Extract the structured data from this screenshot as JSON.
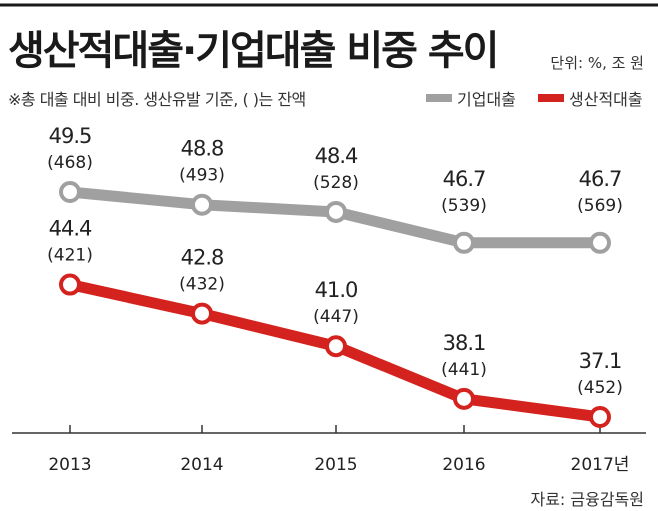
{
  "header": {
    "title": "생산적대출·기업대출 비중 추이",
    "unit": "단위: %, 조 원",
    "note": "※총 대출 대비 비중. 생산유발 기준, (  )는 잔액",
    "source": "자료: 금융감독원"
  },
  "colors": {
    "gray_series": "#a0a0a0",
    "red_series": "#d4231e"
  },
  "chart_data": {
    "type": "line",
    "categories": [
      "2013",
      "2014",
      "2015",
      "2016",
      "2017년"
    ],
    "series": [
      {
        "name": "기업대출",
        "color": "#a0a0a0",
        "values": [
          49.5,
          48.8,
          48.4,
          46.7,
          46.7
        ],
        "value_labels": [
          "49.5",
          "48.8",
          "48.4",
          "46.7",
          "46.7"
        ],
        "balances": [
          "(468)",
          "(493)",
          "(528)",
          "(539)",
          "(569)"
        ]
      },
      {
        "name": "생산적대출",
        "color": "#d4231e",
        "values": [
          44.4,
          42.8,
          41.0,
          38.1,
          37.1
        ],
        "value_labels": [
          "44.4",
          "42.8",
          "41.0",
          "38.1",
          "37.1"
        ],
        "balances": [
          "(421)",
          "(432)",
          "(447)",
          "(441)",
          "(452)"
        ]
      }
    ],
    "xlabel": "",
    "ylabel": "",
    "grid": false,
    "legend": "top-right"
  }
}
